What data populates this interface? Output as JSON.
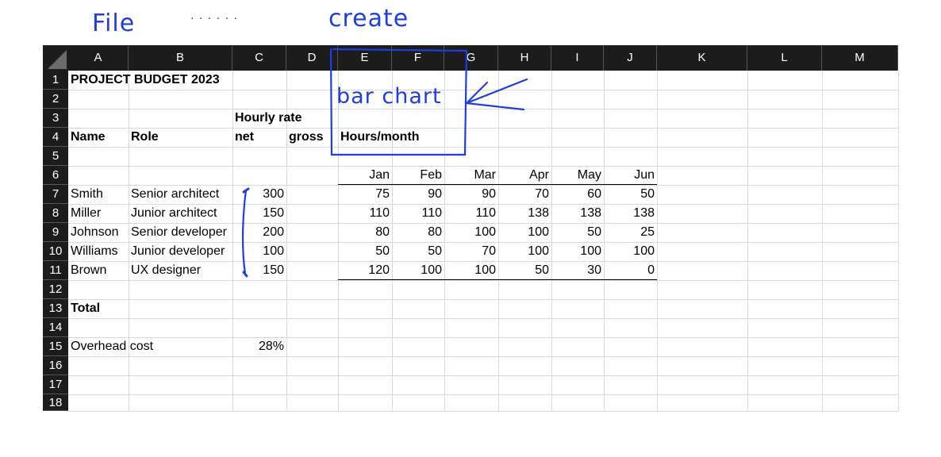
{
  "columns": [
    "A",
    "B",
    "C",
    "D",
    "E",
    "F",
    "G",
    "H",
    "I",
    "J",
    "K",
    "L",
    "M"
  ],
  "rows": [
    "1",
    "2",
    "3",
    "4",
    "5",
    "6",
    "7",
    "8",
    "9",
    "10",
    "11",
    "12",
    "13",
    "14",
    "15",
    "16",
    "17",
    "18"
  ],
  "title": "PROJECT BUDGET 2023",
  "header": {
    "hourly_rate": "Hourly rate",
    "name": "Name",
    "role": "Role",
    "net": "net",
    "gross": "gross",
    "hours_month": "Hours/month"
  },
  "months": [
    "Jan",
    "Feb",
    "Mar",
    "Apr",
    "May",
    "Jun"
  ],
  "people": [
    {
      "name": "Smith",
      "role": "Senior architect",
      "rate": "300",
      "hours": [
        "75",
        "90",
        "90",
        "70",
        "60",
        "50"
      ]
    },
    {
      "name": "Miller",
      "role": "Junior architect",
      "rate": "150",
      "hours": [
        "110",
        "110",
        "110",
        "138",
        "138",
        "138"
      ]
    },
    {
      "name": "Johnson",
      "role": "Senior developer",
      "rate": "200",
      "hours": [
        "80",
        "80",
        "100",
        "100",
        "50",
        "25"
      ]
    },
    {
      "name": "Williams",
      "role": "Junior developer",
      "rate": "100",
      "hours": [
        "50",
        "50",
        "70",
        "100",
        "100",
        "100"
      ]
    },
    {
      "name": "Brown",
      "role": "UX designer",
      "rate": "150",
      "hours": [
        "120",
        "100",
        "100",
        "50",
        "30",
        "0"
      ]
    }
  ],
  "total_label": "Total",
  "overhead_label": "Overhead cost",
  "overhead_value": "28%",
  "annotations": {
    "file": "File",
    "dots": ". . . . . .",
    "create": "create",
    "bar_chart": "bar chart"
  },
  "colors": {
    "header_bg": "#1c1c1c",
    "gridline": "#d9d9d9",
    "ink": "#1f3de0"
  }
}
